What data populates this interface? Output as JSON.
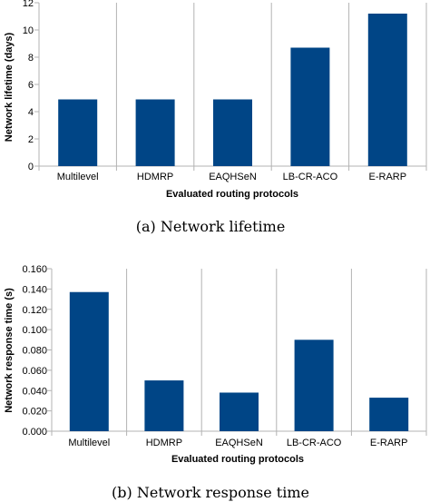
{
  "chart_data": [
    {
      "type": "bar",
      "caption": "(a) Network lifetime",
      "xlabel": "Evaluated routing protocols",
      "ylabel": "Network lifetime (days)",
      "categories": [
        "Multilevel",
        "HDMRP",
        "EAQHSeN",
        "LB-CR-ACO",
        "E-RARP"
      ],
      "values": [
        4.9,
        4.9,
        4.9,
        8.7,
        11.2
      ],
      "ylim": [
        0,
        12
      ],
      "yticks": [
        "0",
        "2",
        "4",
        "6",
        "8",
        "10",
        "12"
      ],
      "color": "#004586",
      "grid": "vertical"
    },
    {
      "type": "bar",
      "caption": "(b) Network response time",
      "xlabel": "Evaluated routing protocols",
      "ylabel": "Network response time (s)",
      "categories": [
        "Multilevel",
        "HDMRP",
        "EAQHSeN",
        "LB-CR-ACO",
        "E-RARP"
      ],
      "values": [
        0.137,
        0.05,
        0.038,
        0.09,
        0.033
      ],
      "ylim": [
        0,
        0.16
      ],
      "yticks": [
        "0.000",
        "0.020",
        "0.040",
        "0.060",
        "0.080",
        "0.100",
        "0.120",
        "0.140",
        "0.160"
      ],
      "color": "#004586",
      "grid": "vertical"
    }
  ]
}
